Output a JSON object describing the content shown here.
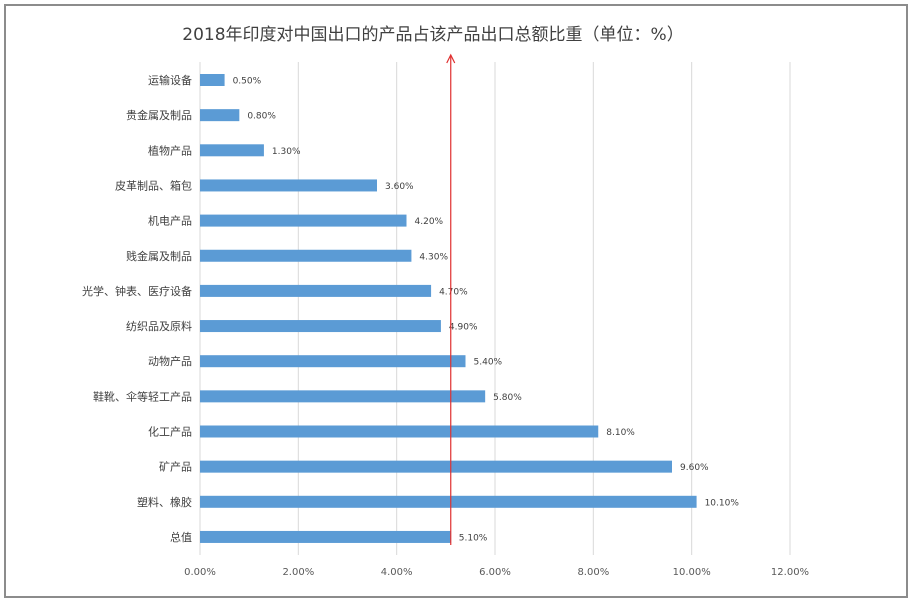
{
  "chart_data": {
    "type": "bar",
    "orientation": "horizontal",
    "title": "2018年印度对中国出口的产品占该产品出口总额比重（单位：%）",
    "categories": [
      "运输设备",
      "贵金属及制品",
      "植物产品",
      "皮革制品、箱包",
      "机电产品",
      "贱金属及制品",
      "光学、钟表、医疗设备",
      "纺织品及原料",
      "动物产品",
      "鞋靴、伞等轻工产品",
      "化工产品",
      "矿产品",
      "塑料、橡胶",
      "总值"
    ],
    "values": [
      0.5,
      0.8,
      1.3,
      3.6,
      4.2,
      4.3,
      4.7,
      4.9,
      5.4,
      5.8,
      8.1,
      9.6,
      10.1,
      5.1
    ],
    "data_labels": [
      "0.50%",
      "0.80%",
      "1.30%",
      "3.60%",
      "4.20%",
      "4.30%",
      "4.70%",
      "4.90%",
      "5.40%",
      "5.80%",
      "8.10%",
      "9.60%",
      "10.10%",
      "5.10%"
    ],
    "x_ticks": [
      "0.00%",
      "2.00%",
      "4.00%",
      "6.00%",
      "8.00%",
      "10.00%",
      "12.00%"
    ],
    "xlim": [
      0,
      12
    ],
    "grid": "vertical",
    "legend": "none",
    "reference_line": {
      "value": 5.1,
      "color": "#e03030",
      "arrow": true
    },
    "bar_color": "#5b9bd5",
    "grid_color": "#d9d9d9"
  }
}
